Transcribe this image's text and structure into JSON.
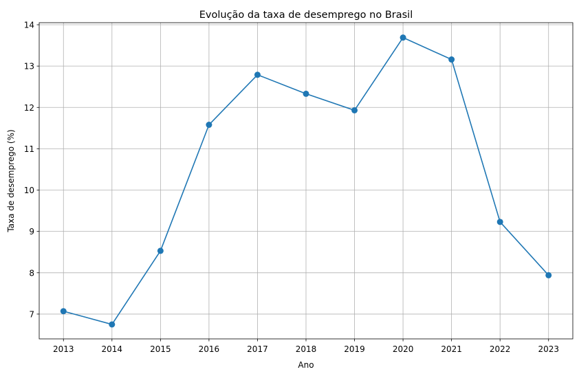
{
  "chart_data": {
    "type": "line",
    "title": "Evolução da taxa de desemprego no Brasil",
    "xlabel": "Ano",
    "ylabel": "Taxa de desemprego (%)",
    "x": [
      "2013",
      "2014",
      "2015",
      "2016",
      "2017",
      "2018",
      "2019",
      "2020",
      "2021",
      "2022",
      "2023"
    ],
    "series": [
      {
        "values": [
          7.07,
          6.75,
          8.53,
          11.58,
          12.79,
          12.33,
          11.93,
          13.69,
          13.16,
          9.23,
          7.94
        ],
        "color": "#1f77b4",
        "marker": "circle"
      }
    ],
    "xlim": [
      2012.5,
      2023.5
    ],
    "ylim": [
      6.4,
      14.05
    ],
    "yticks": [
      7,
      8,
      9,
      10,
      11,
      12,
      13,
      14
    ],
    "grid": true,
    "grid_color": "#b0b0b0"
  }
}
